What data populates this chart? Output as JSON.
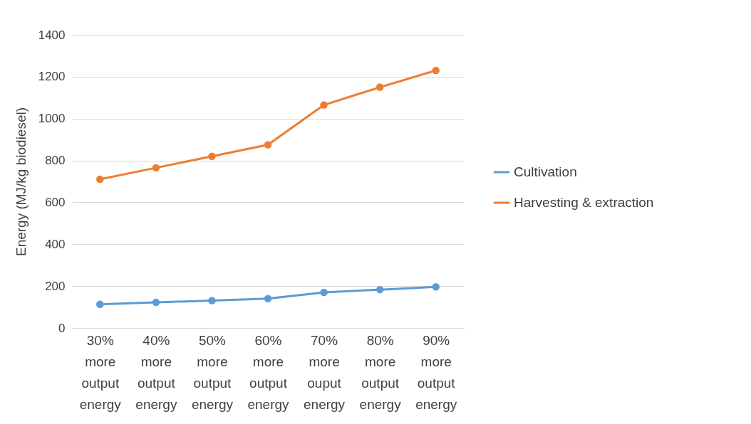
{
  "chart_data": {
    "type": "line",
    "ylabel": "Energy (MJ/kg biodiesel)",
    "categories": [
      "30% more output energy",
      "40% more output energy",
      "50% more output energy",
      "60% more output energy",
      "70% more ouput energy",
      "80% more output energy",
      "90% more output energy"
    ],
    "series": [
      {
        "name": "Cultivation",
        "color": "#5b9bd5",
        "values": [
          113,
          122,
          131,
          140,
          170,
          183,
          196
        ]
      },
      {
        "name": "Harvesting & extraction",
        "color": "#ed7d31",
        "values": [
          710,
          765,
          820,
          875,
          1065,
          1150,
          1230
        ]
      }
    ],
    "ylim": [
      0,
      1400
    ],
    "yticks": [
      0,
      200,
      400,
      600,
      800,
      1000,
      1200,
      1400
    ],
    "grid": "y",
    "legend": "right",
    "marker": "circle",
    "line_style": "solid"
  }
}
